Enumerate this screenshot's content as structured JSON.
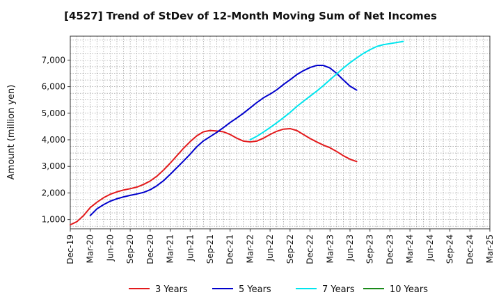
{
  "chart_data": {
    "type": "line",
    "title": "[4527]  Trend of StDev of 12-Month Moving Sum of Net Incomes",
    "xlabel": "",
    "ylabel": "Amount (million yen)",
    "x_ticks": [
      "Dec-19",
      "Mar-20",
      "Jun-20",
      "Sep-20",
      "Dec-20",
      "Mar-21",
      "Jun-21",
      "Sep-21",
      "Dec-21",
      "Mar-22",
      "Jun-22",
      "Sep-22",
      "Dec-22",
      "Mar-23",
      "Jun-23",
      "Sep-23",
      "Dec-23",
      "Mar-24",
      "Jun-24",
      "Sep-24",
      "Dec-24",
      "Mar-25"
    ],
    "y_ticks": [
      1000,
      2000,
      3000,
      4000,
      5000,
      6000,
      7000
    ],
    "ylim": [
      650,
      7900
    ],
    "grid": true,
    "legend_position": "bottom",
    "series": [
      {
        "name": "3 Years",
        "color": "#e31a1c",
        "start_index": 0,
        "values": [
          800,
          920,
          1150,
          1450,
          1650,
          1820,
          1950,
          2040,
          2110,
          2160,
          2220,
          2320,
          2450,
          2630,
          2860,
          3120,
          3400,
          3680,
          3930,
          4150,
          4300,
          4350,
          4330,
          4300,
          4200,
          4060,
          3950,
          3920,
          3950,
          4060,
          4200,
          4320,
          4400,
          4420,
          4350,
          4200,
          4050,
          3920,
          3800,
          3700,
          3560,
          3400,
          3270,
          3180
        ]
      },
      {
        "name": "5 Years",
        "color": "#0000cc",
        "start_index": 3,
        "values": [
          1150,
          1400,
          1560,
          1690,
          1780,
          1850,
          1910,
          1960,
          2020,
          2120,
          2270,
          2460,
          2700,
          2950,
          3200,
          3460,
          3740,
          3960,
          4120,
          4280,
          4460,
          4650,
          4820,
          5000,
          5200,
          5400,
          5580,
          5720,
          5880,
          6080,
          6260,
          6450,
          6600,
          6720,
          6800,
          6800,
          6700,
          6500,
          6250,
          6020,
          5870
        ]
      },
      {
        "name": "7 Years",
        "color": "#00e5ee",
        "start_index": 27,
        "values": [
          4000,
          4130,
          4290,
          4460,
          4640,
          4830,
          5030,
          5250,
          5450,
          5640,
          5830,
          6040,
          6260,
          6480,
          6700,
          6900,
          7080,
          7250,
          7390,
          7510,
          7580,
          7620,
          7660,
          7700
        ]
      },
      {
        "name": "10 Years",
        "color": "#1a8a1a",
        "start_index": 0,
        "values": []
      }
    ]
  }
}
